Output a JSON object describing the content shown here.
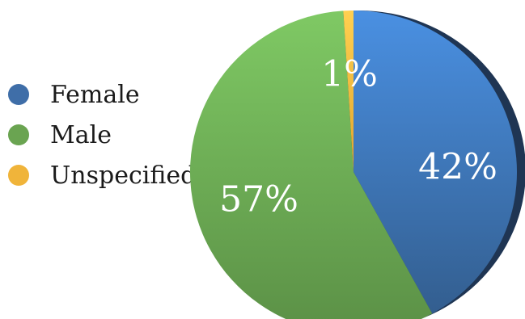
{
  "chart_data": {
    "type": "pie",
    "categories": [
      "Female",
      "Male",
      "Unspecified"
    ],
    "values": [
      42,
      57,
      1
    ],
    "labels": [
      "42%",
      "57%",
      "1%"
    ],
    "colors": [
      "#3f6ea8",
      "#6aa451",
      "#f0b43a"
    ],
    "legend_position": "left"
  }
}
